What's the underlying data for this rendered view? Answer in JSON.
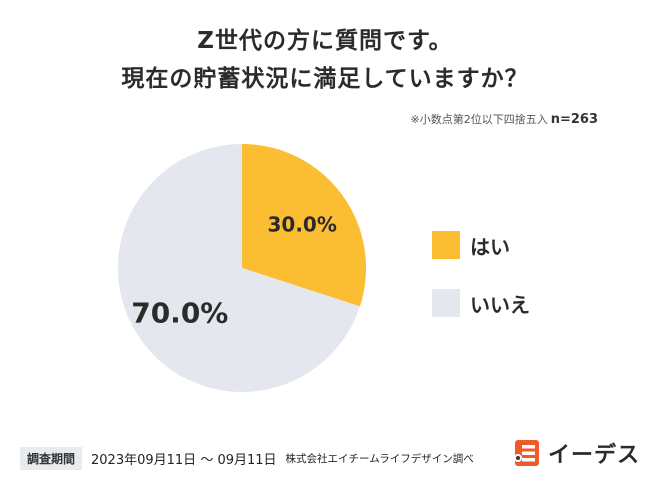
{
  "title": {
    "line1": "Z世代の方に質問です。",
    "line2": "現在の貯蓄状況に満足していますか？"
  },
  "note": {
    "rounding": "※小数点第2位以下四捨五入",
    "n": "n=263"
  },
  "chart_data": {
    "type": "pie",
    "categories": [
      "はい",
      "いいえ"
    ],
    "values": [
      30.0,
      70.0
    ],
    "labels": [
      "30.0%",
      "70.0%"
    ],
    "colors": [
      "#fbbd32",
      "#e4e8ee"
    ],
    "legend_position": "right",
    "n": 263
  },
  "footer": {
    "period_label": "調査期間",
    "period": "2023年09月11日 〜 09月11日",
    "source": "株式会社エイチームライフデザイン調べ"
  },
  "logo": {
    "text": "イーデス",
    "icon": "edesu-logo-icon",
    "accent": "#f05a28"
  }
}
